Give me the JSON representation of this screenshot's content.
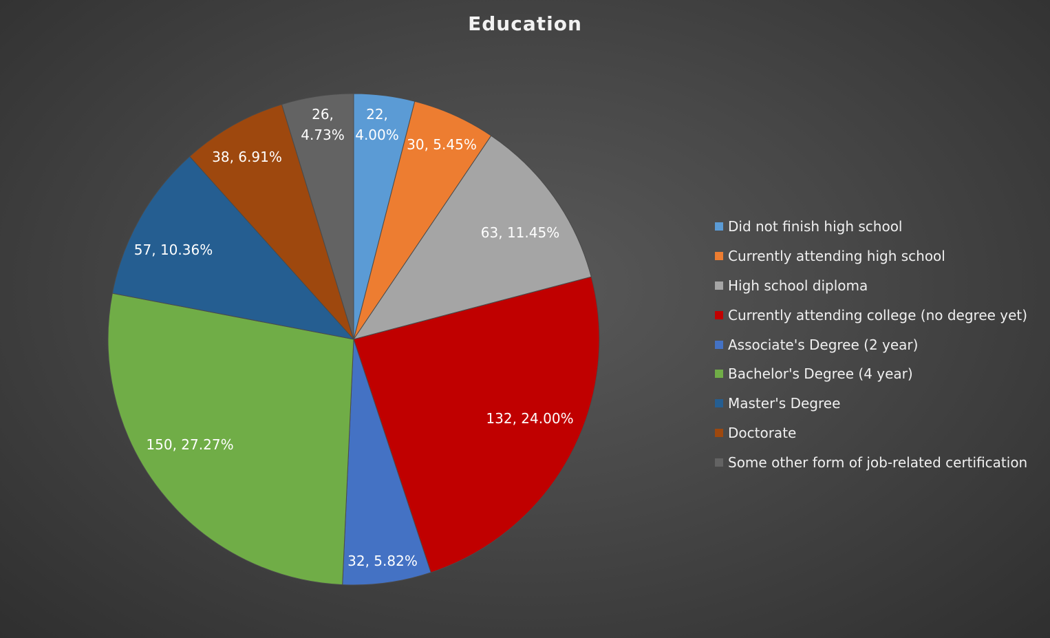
{
  "chart_data": {
    "type": "pie",
    "title": "Education",
    "categories": [
      "Did not finish high school",
      "Currently attending high school",
      "High school diploma",
      "Currently attending college (no degree yet)",
      "Associate's Degree (2 year)",
      "Bachelor's Degree (4 year)",
      "Master's Degree",
      "Doctorate",
      "Some other form of job-related certification"
    ],
    "values": [
      22,
      30,
      63,
      132,
      32,
      150,
      57,
      38,
      26
    ],
    "percent_labels": [
      "4.00%",
      "5.45%",
      "11.45%",
      "24.00%",
      "5.82%",
      "27.27%",
      "10.36%",
      "6.91%",
      "4.73%"
    ],
    "data_labels": [
      [
        "22,",
        "4.00%"
      ],
      [
        "30, 5.45%"
      ],
      [
        "63, 11.45%"
      ],
      [
        "132, 24.00%"
      ],
      [
        "32, 5.82%"
      ],
      [
        "150, 27.27%"
      ],
      [
        "57, 10.36%"
      ],
      [
        "38, 6.91%"
      ],
      [
        "26,",
        "4.73%"
      ]
    ],
    "colors": [
      "#5b9bd5",
      "#ed7d31",
      "#a5a5a5",
      "#c00000",
      "#4472c4",
      "#70ad47",
      "#255e91",
      "#9e480e",
      "#636363"
    ],
    "legend_position": "right"
  }
}
